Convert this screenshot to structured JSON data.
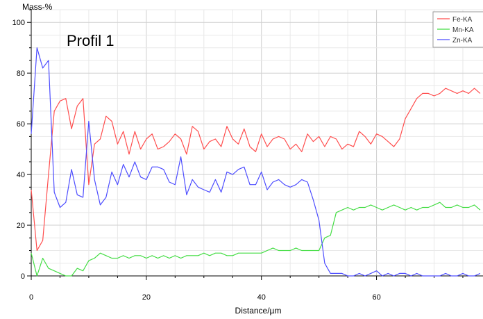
{
  "chart_data": {
    "type": "line",
    "ylabel": "Mass-%",
    "xlabel": "Distance/µm",
    "annotation": "Profil 1",
    "xlim": [
      0,
      78.5
    ],
    "ylim": [
      0,
      105
    ],
    "x_ticks": [
      0,
      20,
      40,
      60
    ],
    "y_ticks": [
      0,
      20,
      40,
      60,
      80,
      100
    ],
    "grid": true,
    "legend_position": "top-right",
    "series": [
      {
        "name": "Fe-KA",
        "color": "#ff4d4d",
        "x": [
          0,
          1,
          2,
          3,
          4,
          5,
          6,
          7,
          8,
          9,
          10,
          11,
          12,
          13,
          14,
          15,
          16,
          17,
          18,
          19,
          20,
          21,
          22,
          23,
          24,
          25,
          26,
          27,
          28,
          29,
          30,
          31,
          32,
          33,
          34,
          35,
          36,
          37,
          38,
          39,
          40,
          41,
          42,
          43,
          44,
          45,
          46,
          47,
          48,
          49,
          50,
          51,
          52,
          53,
          54,
          55,
          56,
          57,
          58,
          59,
          60,
          61,
          62,
          63,
          64,
          65,
          66,
          67,
          68,
          69,
          70,
          71,
          72,
          73,
          74,
          75,
          76,
          77,
          78
        ],
        "values": [
          34,
          10,
          14,
          40,
          65,
          69,
          70,
          58,
          67,
          70,
          36,
          52,
          54,
          63,
          61,
          52,
          57,
          48,
          57,
          50,
          54,
          56,
          50,
          51,
          53,
          56,
          54,
          48,
          59,
          57,
          50,
          53,
          54,
          51,
          59,
          54,
          52,
          58,
          51,
          49,
          56,
          51,
          54,
          55,
          54,
          50,
          52,
          49,
          56,
          53,
          55,
          51,
          55,
          54,
          50,
          52,
          51,
          57,
          55,
          52,
          56,
          55,
          53,
          51,
          54,
          62,
          66,
          70,
          72,
          72,
          71,
          72,
          74,
          73,
          72,
          73,
          72,
          74,
          72
        ]
      },
      {
        "name": "Mn-KA",
        "color": "#44dd44",
        "x": [
          0,
          1,
          2,
          3,
          4,
          5,
          6,
          7,
          8,
          9,
          10,
          11,
          12,
          13,
          14,
          15,
          16,
          17,
          18,
          19,
          20,
          21,
          22,
          23,
          24,
          25,
          26,
          27,
          28,
          29,
          30,
          31,
          32,
          33,
          34,
          35,
          36,
          37,
          38,
          39,
          40,
          41,
          42,
          43,
          44,
          45,
          46,
          47,
          48,
          49,
          50,
          51,
          52,
          53,
          54,
          55,
          56,
          57,
          58,
          59,
          60,
          61,
          62,
          63,
          64,
          65,
          66,
          67,
          68,
          69,
          70,
          71,
          72,
          73,
          74,
          75,
          76,
          77,
          78
        ],
        "values": [
          9,
          0,
          7,
          3,
          2,
          1,
          0,
          0,
          3,
          2,
          6,
          7,
          9,
          8,
          7,
          7,
          8,
          7,
          8,
          8,
          7,
          8,
          7,
          8,
          7,
          8,
          7,
          8,
          8,
          8,
          9,
          8,
          9,
          9,
          8,
          8,
          9,
          9,
          9,
          9,
          9,
          10,
          11,
          10,
          10,
          10,
          11,
          10,
          10,
          10,
          10,
          15,
          16,
          25,
          26,
          27,
          26,
          27,
          27,
          28,
          27,
          26,
          27,
          28,
          27,
          26,
          27,
          26,
          27,
          27,
          28,
          29,
          27,
          27,
          28,
          27,
          27,
          28,
          26
        ]
      },
      {
        "name": "Zn-KA",
        "color": "#4d4dff",
        "x": [
          0,
          1,
          2,
          3,
          4,
          5,
          6,
          7,
          8,
          9,
          10,
          11,
          12,
          13,
          14,
          15,
          16,
          17,
          18,
          19,
          20,
          21,
          22,
          23,
          24,
          25,
          26,
          27,
          28,
          29,
          30,
          31,
          32,
          33,
          34,
          35,
          36,
          37,
          38,
          39,
          40,
          41,
          42,
          43,
          44,
          45,
          46,
          47,
          48,
          49,
          50,
          51,
          52,
          53,
          54,
          55,
          56,
          57,
          58,
          59,
          60,
          61,
          62,
          63,
          64,
          65,
          66,
          67,
          68,
          69,
          70,
          71,
          72,
          73,
          74,
          75,
          76,
          77,
          78
        ],
        "values": [
          56,
          90,
          82,
          85,
          33,
          27,
          29,
          42,
          32,
          31,
          61,
          38,
          28,
          31,
          41,
          36,
          44,
          39,
          45,
          39,
          38,
          43,
          43,
          42,
          37,
          36,
          47,
          32,
          38,
          35,
          34,
          33,
          38,
          33,
          41,
          40,
          42,
          43,
          36,
          36,
          41,
          34,
          37,
          38,
          36,
          35,
          36,
          38,
          37,
          30,
          22,
          5,
          1,
          1,
          1,
          0,
          0,
          1,
          0,
          1,
          2,
          0,
          1,
          0,
          1,
          1,
          0,
          1,
          0,
          0,
          0,
          0,
          1,
          0,
          0,
          1,
          0,
          0,
          1
        ]
      }
    ]
  }
}
